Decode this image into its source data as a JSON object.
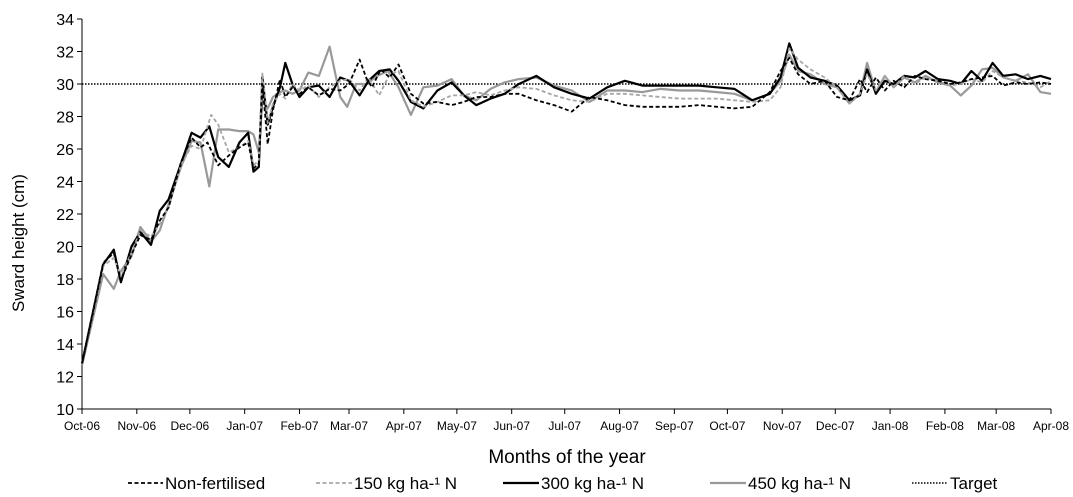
{
  "chart_data": {
    "type": "line",
    "title": "",
    "xlabel": "Months of the year",
    "ylabel": "Sward height (cm)",
    "ylim": [
      10,
      34
    ],
    "yticks": [
      10,
      12,
      14,
      16,
      18,
      20,
      22,
      24,
      26,
      28,
      30,
      32,
      34
    ],
    "xlim": [
      "2006-10-01",
      "2008-04-01"
    ],
    "x_ticks": [
      {
        "date": "2006-10-01",
        "label": "Oct-06"
      },
      {
        "date": "2006-11-01",
        "label": "Nov-06"
      },
      {
        "date": "2006-12-01",
        "label": "Dec-06"
      },
      {
        "date": "2007-01-01",
        "label": "Jan-07"
      },
      {
        "date": "2007-02-01",
        "label": "Feb-07"
      },
      {
        "date": "2007-03-01",
        "label": "Mar-07"
      },
      {
        "date": "2007-04-01",
        "label": "Apr-07"
      },
      {
        "date": "2007-05-01",
        "label": "May-07"
      },
      {
        "date": "2007-06-01",
        "label": "Jun-07"
      },
      {
        "date": "2007-07-01",
        "label": "Jul-07"
      },
      {
        "date": "2007-08-01",
        "label": "Aug-07"
      },
      {
        "date": "2007-09-01",
        "label": "Sep-07"
      },
      {
        "date": "2007-10-01",
        "label": "Oct-07"
      },
      {
        "date": "2007-11-01",
        "label": "Nov-07"
      },
      {
        "date": "2007-12-01",
        "label": "Dec-07"
      },
      {
        "date": "2008-01-01",
        "label": "Jan-08"
      },
      {
        "date": "2008-02-01",
        "label": "Feb-08"
      },
      {
        "date": "2008-03-01",
        "label": "Mar-08"
      },
      {
        "date": "2008-04-01",
        "label": "Apr-08"
      }
    ],
    "grid": false,
    "legend_position": "bottom",
    "reference_line": {
      "name": "Target",
      "value": 30,
      "style": "dotted",
      "color": "#000000"
    },
    "series": [
      {
        "name": "Non-fertilised",
        "color": "#000000",
        "style": "dashed",
        "width": 1.8,
        "x": [
          "2006-10-01",
          "2006-10-13",
          "2006-10-19",
          "2006-10-23",
          "2006-10-29",
          "2006-11-03",
          "2006-11-09",
          "2006-11-14",
          "2006-11-19",
          "2006-11-26",
          "2006-12-02",
          "2006-12-07",
          "2006-12-11",
          "2006-12-17",
          "2006-12-23",
          "2006-12-29",
          "2007-01-03",
          "2007-01-06",
          "2007-01-09",
          "2007-01-11",
          "2007-01-14",
          "2007-01-17",
          "2007-01-21",
          "2007-01-24",
          "2007-01-28",
          "2007-02-01",
          "2007-02-06",
          "2007-02-12",
          "2007-02-18",
          "2007-02-24",
          "2007-03-01",
          "2007-03-07",
          "2007-03-11",
          "2007-03-14",
          "2007-03-19",
          "2007-03-24",
          "2007-03-29",
          "2007-04-05",
          "2007-04-12",
          "2007-04-20",
          "2007-04-28",
          "2007-05-05",
          "2007-05-12",
          "2007-05-20",
          "2007-05-28",
          "2007-06-05",
          "2007-06-15",
          "2007-06-25",
          "2007-07-05",
          "2007-07-15",
          "2007-07-25",
          "2007-08-04",
          "2007-08-14",
          "2007-08-24",
          "2007-09-04",
          "2007-09-15",
          "2007-09-25",
          "2007-10-05",
          "2007-10-15",
          "2007-10-25",
          "2007-10-31",
          "2007-11-05",
          "2007-11-10",
          "2007-11-17",
          "2007-11-25",
          "2007-12-02",
          "2007-12-09",
          "2007-12-15",
          "2007-12-19",
          "2007-12-24",
          "2007-12-29",
          "2008-01-03",
          "2008-01-09",
          "2008-01-15",
          "2008-01-21",
          "2008-01-28",
          "2008-02-04",
          "2008-02-10",
          "2008-02-16",
          "2008-02-22",
          "2008-02-28",
          "2008-03-05",
          "2008-03-12",
          "2008-03-19",
          "2008-03-26",
          "2008-04-01"
        ],
        "values": [
          12.8,
          19.0,
          19.6,
          17.9,
          19.5,
          20.7,
          20.4,
          21.6,
          22.4,
          25.2,
          26.7,
          26.1,
          26.4,
          25.0,
          25.6,
          26.1,
          26.4,
          24.8,
          25.1,
          30.0,
          26.3,
          28.4,
          30.3,
          29.2,
          29.8,
          29.4,
          29.8,
          29.3,
          29.7,
          29.6,
          30.0,
          31.5,
          30.3,
          29.8,
          30.9,
          30.4,
          31.2,
          29.4,
          28.8,
          28.9,
          28.7,
          28.9,
          29.2,
          29.2,
          29.4,
          29.4,
          29.0,
          28.7,
          28.3,
          29.2,
          29.0,
          28.7,
          28.6,
          28.6,
          28.6,
          28.7,
          28.6,
          28.5,
          28.6,
          29.5,
          30.8,
          31.6,
          30.6,
          30.0,
          30.2,
          29.2,
          29.0,
          30.3,
          29.5,
          30.4,
          29.6,
          30.2,
          29.8,
          30.5,
          30.3,
          30.2,
          30.0,
          30.1,
          30.3,
          30.4,
          30.5,
          29.9,
          30.1,
          30.0,
          30.1,
          30.0
        ]
      },
      {
        "name": "150 kg ha-¹ N",
        "color": "#a6a6a6",
        "style": "dashed",
        "width": 1.8,
        "x": [
          "2006-10-01",
          "2006-10-13",
          "2006-10-19",
          "2006-10-23",
          "2006-10-29",
          "2006-11-03",
          "2006-11-09",
          "2006-11-14",
          "2006-11-19",
          "2006-11-26",
          "2006-12-02",
          "2006-12-07",
          "2006-12-13",
          "2006-12-17",
          "2006-12-23",
          "2006-12-29",
          "2007-01-03",
          "2007-01-06",
          "2007-01-09",
          "2007-01-11",
          "2007-01-14",
          "2007-01-17",
          "2007-01-21",
          "2007-01-24",
          "2007-01-28",
          "2007-02-01",
          "2007-02-06",
          "2007-02-12",
          "2007-02-18",
          "2007-02-24",
          "2007-03-01",
          "2007-03-07",
          "2007-03-12",
          "2007-03-18",
          "2007-03-24",
          "2007-03-29",
          "2007-04-05",
          "2007-04-12",
          "2007-04-20",
          "2007-04-28",
          "2007-05-05",
          "2007-05-12",
          "2007-05-20",
          "2007-05-28",
          "2007-06-05",
          "2007-06-15",
          "2007-06-25",
          "2007-07-05",
          "2007-07-15",
          "2007-07-25",
          "2007-08-04",
          "2007-08-14",
          "2007-08-24",
          "2007-09-04",
          "2007-09-15",
          "2007-09-25",
          "2007-10-05",
          "2007-10-15",
          "2007-10-25",
          "2007-10-31",
          "2007-11-05",
          "2007-11-10",
          "2007-11-17",
          "2007-11-25",
          "2007-12-02",
          "2007-12-09",
          "2007-12-15",
          "2007-12-19",
          "2007-12-24",
          "2007-12-29",
          "2008-01-03",
          "2008-01-09",
          "2008-01-15",
          "2008-01-21",
          "2008-01-28",
          "2008-02-04",
          "2008-02-10",
          "2008-02-16",
          "2008-02-22",
          "2008-02-28",
          "2008-03-05",
          "2008-03-12",
          "2008-03-19",
          "2008-03-26",
          "2008-04-01"
        ],
        "values": [
          12.8,
          18.8,
          19.3,
          18.2,
          19.6,
          21.0,
          20.6,
          21.4,
          22.4,
          25.0,
          26.2,
          26.0,
          28.1,
          27.5,
          25.8,
          26.1,
          26.5,
          25.0,
          25.3,
          30.7,
          27.6,
          28.8,
          29.4,
          29.1,
          30.0,
          29.6,
          29.9,
          29.2,
          29.8,
          30.2,
          30.3,
          29.6,
          30.4,
          29.3,
          30.6,
          30.8,
          29.0,
          28.6,
          28.9,
          29.3,
          29.3,
          29.5,
          29.3,
          29.6,
          29.8,
          29.7,
          29.3,
          29.0,
          28.9,
          29.4,
          29.4,
          29.3,
          29.2,
          29.1,
          29.1,
          29.1,
          29.0,
          28.9,
          29.0,
          29.8,
          32.2,
          31.5,
          30.9,
          30.4,
          29.8,
          28.8,
          29.4,
          30.6,
          29.6,
          30.5,
          29.8,
          30.5,
          30.0,
          30.4,
          30.2,
          29.9,
          30.0,
          30.3,
          30.1,
          30.8,
          30.4,
          30.2,
          30.1,
          29.8,
          30.2
        ]
      },
      {
        "name": "300 kg ha-¹ N",
        "color": "#000000",
        "style": "solid",
        "width": 2.2,
        "x": [
          "2006-10-01",
          "2006-10-13",
          "2006-10-19",
          "2006-10-23",
          "2006-10-29",
          "2006-11-03",
          "2006-11-09",
          "2006-11-14",
          "2006-11-19",
          "2006-11-26",
          "2006-12-02",
          "2006-12-07",
          "2006-12-12",
          "2006-12-17",
          "2006-12-23",
          "2006-12-29",
          "2007-01-03",
          "2007-01-06",
          "2007-01-09",
          "2007-01-11",
          "2007-01-14",
          "2007-01-17",
          "2007-01-21",
          "2007-01-24",
          "2007-01-28",
          "2007-02-01",
          "2007-02-06",
          "2007-02-12",
          "2007-02-18",
          "2007-02-24",
          "2007-03-01",
          "2007-03-07",
          "2007-03-12",
          "2007-03-18",
          "2007-03-24",
          "2007-03-29",
          "2007-04-05",
          "2007-04-12",
          "2007-04-20",
          "2007-04-28",
          "2007-05-05",
          "2007-05-12",
          "2007-05-20",
          "2007-05-28",
          "2007-06-05",
          "2007-06-15",
          "2007-06-25",
          "2007-07-05",
          "2007-07-15",
          "2007-07-25",
          "2007-08-04",
          "2007-08-14",
          "2007-08-24",
          "2007-09-04",
          "2007-09-15",
          "2007-09-25",
          "2007-10-05",
          "2007-10-15",
          "2007-10-25",
          "2007-10-31",
          "2007-11-05",
          "2007-11-10",
          "2007-11-17",
          "2007-11-25",
          "2007-12-02",
          "2007-12-09",
          "2007-12-15",
          "2007-12-19",
          "2007-12-24",
          "2007-12-29",
          "2008-01-03",
          "2008-01-09",
          "2008-01-15",
          "2008-01-21",
          "2008-01-28",
          "2008-02-04",
          "2008-02-10",
          "2008-02-16",
          "2008-02-22",
          "2008-02-28",
          "2008-03-05",
          "2008-03-12",
          "2008-03-19",
          "2008-03-26",
          "2008-04-01"
        ],
        "values": [
          12.8,
          18.9,
          19.8,
          17.8,
          20.0,
          20.9,
          20.1,
          22.2,
          22.9,
          25.1,
          27.0,
          26.7,
          27.4,
          25.5,
          24.9,
          26.4,
          27.0,
          24.6,
          24.9,
          30.4,
          27.5,
          28.6,
          29.8,
          31.3,
          30.0,
          29.2,
          29.8,
          29.9,
          29.2,
          30.4,
          30.2,
          29.3,
          30.2,
          30.8,
          30.9,
          30.2,
          28.9,
          28.5,
          29.6,
          30.1,
          29.3,
          28.7,
          29.1,
          29.4,
          30.0,
          30.5,
          29.8,
          29.4,
          29.1,
          29.8,
          30.2,
          29.9,
          29.9,
          29.9,
          29.9,
          29.8,
          29.7,
          29.0,
          29.4,
          30.4,
          32.5,
          31.0,
          30.4,
          30.2,
          29.9,
          29.0,
          29.3,
          30.9,
          29.4,
          30.2,
          30.0,
          30.5,
          30.4,
          30.8,
          30.3,
          30.2,
          30.0,
          30.8,
          30.2,
          31.3,
          30.5,
          30.6,
          30.3,
          30.5,
          30.3
        ]
      },
      {
        "name": "450 kg ha-¹ N",
        "color": "#999999",
        "style": "solid",
        "width": 2.2,
        "x": [
          "2006-10-01",
          "2006-10-13",
          "2006-10-19",
          "2006-10-23",
          "2006-10-29",
          "2006-11-03",
          "2006-11-09",
          "2006-11-14",
          "2006-11-19",
          "2006-11-26",
          "2006-12-02",
          "2006-12-07",
          "2006-12-12",
          "2006-12-17",
          "2006-12-23",
          "2006-12-29",
          "2007-01-03",
          "2007-01-06",
          "2007-01-09",
          "2007-01-11",
          "2007-01-14",
          "2007-01-17",
          "2007-01-21",
          "2007-01-24",
          "2007-01-28",
          "2007-02-01",
          "2007-02-06",
          "2007-02-12",
          "2007-02-18",
          "2007-02-24",
          "2007-02-28",
          "2007-03-05",
          "2007-03-11",
          "2007-03-17",
          "2007-03-23",
          "2007-03-29",
          "2007-04-05",
          "2007-04-12",
          "2007-04-20",
          "2007-04-28",
          "2007-05-05",
          "2007-05-12",
          "2007-05-20",
          "2007-05-28",
          "2007-06-05",
          "2007-06-15",
          "2007-06-25",
          "2007-07-05",
          "2007-07-15",
          "2007-07-25",
          "2007-08-04",
          "2007-08-14",
          "2007-08-24",
          "2007-09-04",
          "2007-09-15",
          "2007-09-25",
          "2007-10-05",
          "2007-10-15",
          "2007-10-25",
          "2007-10-31",
          "2007-11-05",
          "2007-11-10",
          "2007-11-17",
          "2007-11-25",
          "2007-12-02",
          "2007-12-09",
          "2007-12-15",
          "2007-12-19",
          "2007-12-24",
          "2007-12-29",
          "2008-01-03",
          "2008-01-09",
          "2008-01-15",
          "2008-01-21",
          "2008-01-28",
          "2008-02-04",
          "2008-02-10",
          "2008-02-16",
          "2008-02-22",
          "2008-02-28",
          "2008-03-05",
          "2008-03-12",
          "2008-03-19",
          "2008-03-26",
          "2008-04-01"
        ],
        "values": [
          12.7,
          18.3,
          17.4,
          18.5,
          19.4,
          21.2,
          20.3,
          21.0,
          22.6,
          24.9,
          26.5,
          26.4,
          23.7,
          27.2,
          27.2,
          27.1,
          27.1,
          26.9,
          25.8,
          29.0,
          28.5,
          29.2,
          29.5,
          29.6,
          29.4,
          29.6,
          30.7,
          30.5,
          32.3,
          29.2,
          28.6,
          30.0,
          30.0,
          30.5,
          30.8,
          29.8,
          28.1,
          29.8,
          29.9,
          30.3,
          29.3,
          29.0,
          29.7,
          30.1,
          30.3,
          30.4,
          29.9,
          29.6,
          28.9,
          29.6,
          29.6,
          29.5,
          29.7,
          29.6,
          29.6,
          29.5,
          29.4,
          29.0,
          29.4,
          30.2,
          31.8,
          30.8,
          30.6,
          30.0,
          29.8,
          28.8,
          29.4,
          31.3,
          29.5,
          30.5,
          29.8,
          30.4,
          30.1,
          30.5,
          30.1,
          29.9,
          29.3,
          29.9,
          30.9,
          31.0,
          30.4,
          30.2,
          30.6,
          29.5,
          29.4
        ]
      }
    ]
  }
}
